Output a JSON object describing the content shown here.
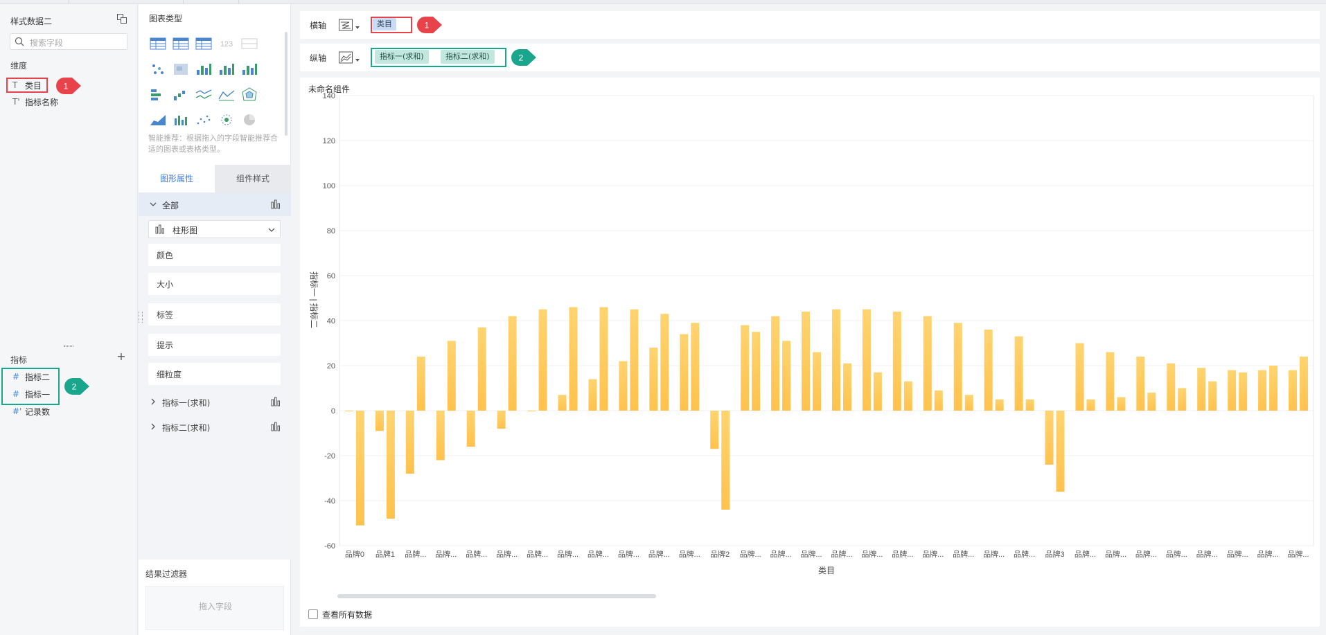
{
  "data_panel": {
    "dataset_title": "样式数据二",
    "search_placeholder": "搜索字段",
    "dimensions_label": "维度",
    "dimensions": [
      {
        "type_glyph": "T",
        "name": "类目"
      },
      {
        "type_glyph": "T'",
        "name": "指标名称"
      }
    ],
    "measures_label": "指标",
    "measures": [
      {
        "type_glyph": "#",
        "name": "指标二"
      },
      {
        "type_glyph": "#",
        "name": "指标一"
      },
      {
        "type_glyph": "#'",
        "name": "记录数"
      }
    ]
  },
  "chart_type_panel": {
    "title": "图表类型",
    "hint": "智能推荐：根据拖入的字段智能推荐合适的图表或表格类型。",
    "tabs": [
      "图形属性",
      "组件样式"
    ],
    "all_label": "全部",
    "chart_select_value": "柱形图",
    "props": [
      "颜色",
      "大小",
      "标签",
      "提示",
      "细粒度"
    ],
    "measure_rows": [
      "指标一(求和)",
      "指标二(求和)"
    ],
    "filter_title": "结果过滤器",
    "filter_placeholder": "拖入字段"
  },
  "axes": {
    "x_label": "横轴",
    "x_field": "类目",
    "y_label": "纵轴",
    "y_fields": [
      "指标一(求和)",
      "指标二(求和)"
    ]
  },
  "callouts": [
    "1",
    "2"
  ],
  "component": {
    "title": "未命名组件",
    "show_all_label": "查看所有数据"
  },
  "colors": {
    "bar": "#ffc24d",
    "bar_top": "#ffd470",
    "red_highlight": "#e8424a",
    "green_highlight": "#1aa68c",
    "active_tab": "#3d7bd9"
  },
  "chart_data": {
    "type": "bar",
    "xlabel": "类目",
    "ylabel": "指标一 | 指标二",
    "ylim": [
      -60,
      140
    ],
    "yticks": [
      140,
      120,
      100,
      80,
      60,
      40,
      20,
      0,
      -20,
      -40,
      -60
    ],
    "grid": true,
    "categories": [
      "品牌0",
      "品牌1",
      "品牌...",
      "品牌...",
      "品牌...",
      "品牌...",
      "品牌...",
      "品牌...",
      "品牌...",
      "品牌...",
      "品牌...",
      "品牌...",
      "品牌2",
      "品牌...",
      "品牌...",
      "品牌...",
      "品牌...",
      "品牌...",
      "品牌...",
      "品牌...",
      "品牌...",
      "品牌...",
      "品牌...",
      "品牌3",
      "品牌...",
      "品牌...",
      "品牌...",
      "品牌...",
      "品牌...",
      "品牌...",
      "品牌...",
      "品牌..."
    ],
    "series": [
      {
        "values": [
          0,
          -9,
          -28,
          -22,
          -16,
          -8,
          0,
          7,
          14,
          22,
          28,
          34,
          -17,
          38,
          42,
          44,
          45,
          45,
          44,
          42,
          39,
          36,
          33,
          -24,
          30,
          26,
          24,
          21,
          19,
          18,
          18,
          18
        ]
      },
      {
        "values": [
          -51,
          -48,
          24,
          31,
          37,
          42,
          45,
          46,
          46,
          45,
          43,
          39,
          -44,
          35,
          31,
          26,
          21,
          17,
          13,
          9,
          7,
          5,
          5,
          -36,
          5,
          6,
          8,
          10,
          13,
          17,
          20,
          24
        ]
      }
    ]
  }
}
